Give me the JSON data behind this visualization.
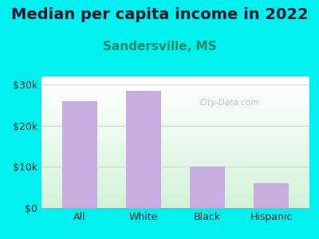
{
  "title": "Median per capita income in 2022",
  "subtitle": "Sandersville, MS",
  "categories": [
    "All",
    "White",
    "Black",
    "Hispanic"
  ],
  "values": [
    26000,
    28500,
    10000,
    6000
  ],
  "bar_color": "#c8aee0",
  "background_color": "#00f0f0",
  "plot_bg_top": "#ffffff",
  "plot_bg_bottom": "#d0f0d8",
  "title_color": "#1a1a2e",
  "subtitle_color": "#2a8a6a",
  "tick_label_color": "#2a2a2a",
  "watermark_text": "City-Data.com",
  "watermark_color": "#b0b8c8",
  "ylim": [
    0,
    32000
  ],
  "yticks": [
    0,
    10000,
    20000,
    30000
  ],
  "ytick_labels": [
    "$0",
    "$10k",
    "$20k",
    "$30k"
  ],
  "title_fontsize": 14,
  "subtitle_fontsize": 11,
  "tick_fontsize": 9,
  "grid_color": "#d0d8d0",
  "figsize": [
    4.0,
    3.0
  ],
  "dpi": 100
}
